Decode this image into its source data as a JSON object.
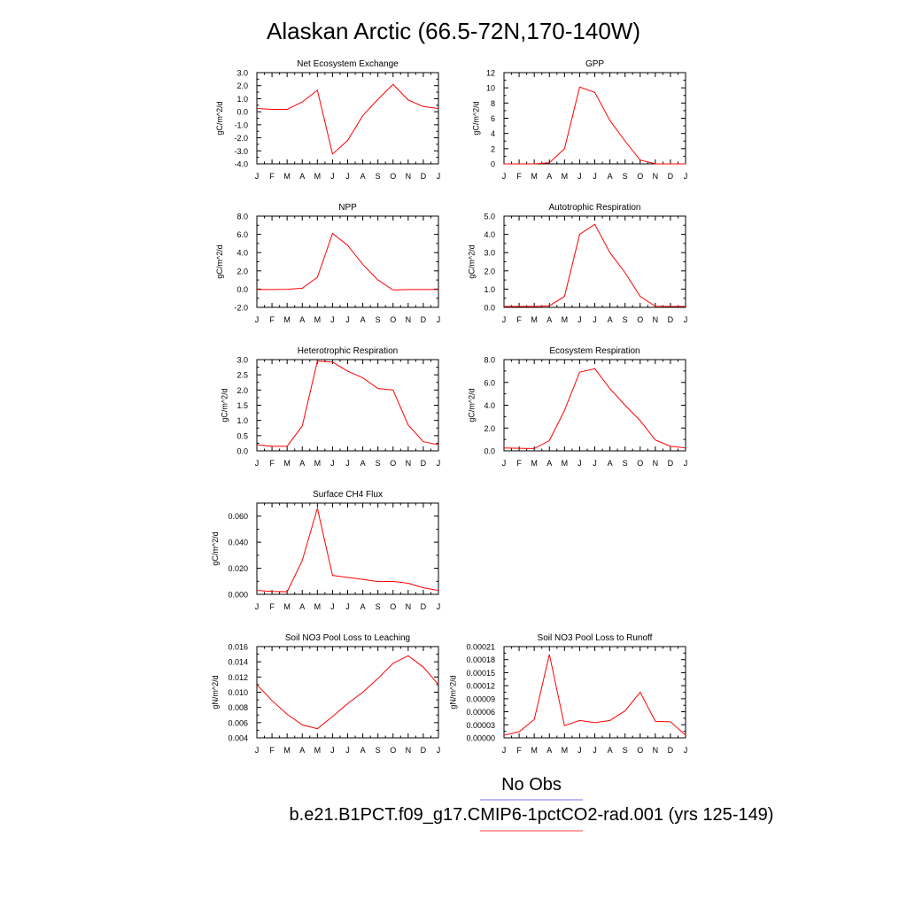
{
  "page_title": "Alaskan Arctic (66.5-72N,170-140W)",
  "legend": [
    {
      "label": "No Obs",
      "color": "#7777ff"
    },
    {
      "label": "b.e21.B1PCT.f09_g17.CMIP6-1pctCO2-rad.001 (yrs 125-149)",
      "color": "#ff4444"
    }
  ],
  "chart_data": [
    {
      "type": "line",
      "title": "Net Ecosystem Exchange",
      "ylabel": "gC/m^2/d",
      "categories": [
        "J",
        "F",
        "M",
        "A",
        "M",
        "J",
        "J",
        "A",
        "S",
        "O",
        "N",
        "D",
        "J"
      ],
      "ylim": [
        -4,
        3
      ],
      "yticks": [
        -4,
        -3,
        -2,
        -1,
        0,
        1,
        2,
        3
      ],
      "ytick_labels": [
        "-4.0",
        "-3.0",
        "-2.0",
        "-1.0",
        "0.0",
        "1.0",
        "2.0",
        "3.0"
      ],
      "series": [
        {
          "color": "#ff0000",
          "values": [
            0.25,
            0.18,
            0.18,
            0.75,
            1.65,
            -3.25,
            -2.2,
            -0.3,
            0.95,
            2.1,
            0.9,
            0.4,
            0.25
          ]
        }
      ]
    },
    {
      "type": "line",
      "title": "GPP",
      "ylabel": "gC/m^2/d",
      "categories": [
        "J",
        "F",
        "M",
        "A",
        "M",
        "J",
        "J",
        "A",
        "S",
        "O",
        "N",
        "D",
        "J"
      ],
      "ylim": [
        0,
        12
      ],
      "yticks": [
        0,
        2,
        4,
        6,
        8,
        10,
        12
      ],
      "ytick_labels": [
        "0",
        "2",
        "4",
        "6",
        "8",
        "10",
        "12"
      ],
      "series": [
        {
          "color": "#ff0000",
          "values": [
            0.0,
            0.0,
            0.0,
            0.15,
            2.0,
            10.1,
            9.4,
            5.7,
            3.0,
            0.5,
            0.02,
            0.0,
            0.0
          ]
        }
      ]
    },
    {
      "type": "line",
      "title": "NPP",
      "ylabel": "gC/m^2/d",
      "categories": [
        "J",
        "F",
        "M",
        "A",
        "M",
        "J",
        "J",
        "A",
        "S",
        "O",
        "N",
        "D",
        "J"
      ],
      "ylim": [
        -2,
        8
      ],
      "yticks": [
        -2,
        0,
        2,
        4,
        6,
        8
      ],
      "ytick_labels": [
        "-2.0",
        "0.0",
        "2.0",
        "4.0",
        "6.0",
        "8.0"
      ],
      "series": [
        {
          "color": "#ff0000",
          "values": [
            -0.05,
            -0.05,
            -0.02,
            0.1,
            1.3,
            6.1,
            4.8,
            2.7,
            1.0,
            -0.1,
            -0.05,
            -0.05,
            -0.05
          ]
        }
      ]
    },
    {
      "type": "line",
      "title": "Autotrophic Respiration",
      "ylabel": "gC/m^2/d",
      "categories": [
        "J",
        "F",
        "M",
        "A",
        "M",
        "J",
        "J",
        "A",
        "S",
        "O",
        "N",
        "D",
        "J"
      ],
      "ylim": [
        0,
        5
      ],
      "yticks": [
        0,
        1,
        2,
        3,
        4,
        5
      ],
      "ytick_labels": [
        "0.0",
        "1.0",
        "2.0",
        "3.0",
        "4.0",
        "5.0"
      ],
      "series": [
        {
          "color": "#ff0000",
          "values": [
            0.05,
            0.05,
            0.05,
            0.08,
            0.6,
            4.0,
            4.55,
            3.0,
            1.9,
            0.6,
            0.06,
            0.05,
            0.05
          ]
        }
      ]
    },
    {
      "type": "line",
      "title": "Heterotrophic Respiration",
      "ylabel": "gC/m^2/d",
      "categories": [
        "J",
        "F",
        "M",
        "A",
        "M",
        "J",
        "J",
        "A",
        "S",
        "O",
        "N",
        "D",
        "J"
      ],
      "ylim": [
        0,
        3
      ],
      "yticks": [
        0,
        0.5,
        1,
        1.5,
        2,
        2.5,
        3
      ],
      "ytick_labels": [
        "0.0",
        "0.5",
        "1.0",
        "1.5",
        "2.0",
        "2.5",
        "3.0"
      ],
      "series": [
        {
          "color": "#ff0000",
          "values": [
            0.2,
            0.15,
            0.15,
            0.82,
            2.95,
            2.92,
            2.62,
            2.4,
            2.05,
            2.0,
            0.85,
            0.3,
            0.2
          ]
        }
      ]
    },
    {
      "type": "line",
      "title": "Ecosystem Respiration",
      "ylabel": "gC/m^2/d",
      "categories": [
        "J",
        "F",
        "M",
        "A",
        "M",
        "J",
        "J",
        "A",
        "S",
        "O",
        "N",
        "D",
        "J"
      ],
      "ylim": [
        0,
        8
      ],
      "yticks": [
        0,
        2,
        4,
        6,
        8
      ],
      "ytick_labels": [
        "0.0",
        "2.0",
        "4.0",
        "6.0",
        "8.0"
      ],
      "series": [
        {
          "color": "#ff0000",
          "values": [
            0.25,
            0.22,
            0.2,
            0.9,
            3.55,
            6.9,
            7.2,
            5.45,
            4.0,
            2.65,
            0.95,
            0.4,
            0.25
          ]
        }
      ]
    },
    {
      "type": "line",
      "title": "Surface CH4 Flux",
      "ylabel": "gC/m^2/d",
      "categories": [
        "J",
        "F",
        "M",
        "A",
        "M",
        "J",
        "J",
        "A",
        "S",
        "O",
        "N",
        "D",
        "J"
      ],
      "ylim": [
        0,
        0.07
      ],
      "yticks": [
        0,
        0.02,
        0.04,
        0.06
      ],
      "ytick_labels": [
        "0.000",
        "0.020",
        "0.040",
        "0.060"
      ],
      "series": [
        {
          "color": "#ff0000",
          "values": [
            0.003,
            0.0022,
            0.002,
            0.026,
            0.066,
            0.0145,
            0.013,
            0.0115,
            0.0098,
            0.0099,
            0.0085,
            0.005,
            0.003
          ]
        }
      ]
    },
    {
      "type": "line",
      "title": "Soil NO3 Pool Loss to Leaching",
      "ylabel": "gN/m^2/d",
      "categories": [
        "J",
        "F",
        "M",
        "A",
        "M",
        "J",
        "J",
        "A",
        "S",
        "O",
        "N",
        "D",
        "J"
      ],
      "ylim": [
        0.004,
        0.016
      ],
      "yticks": [
        0.004,
        0.006,
        0.008,
        0.01,
        0.012,
        0.014,
        0.016
      ],
      "ytick_labels": [
        "0.004",
        "0.006",
        "0.008",
        "0.010",
        "0.012",
        "0.014",
        "0.016"
      ],
      "series": [
        {
          "color": "#ff0000",
          "values": [
            0.011,
            0.0089,
            0.0071,
            0.0057,
            0.0052,
            0.0068,
            0.0085,
            0.01,
            0.0118,
            0.0138,
            0.0148,
            0.0133,
            0.011
          ]
        }
      ]
    },
    {
      "type": "line",
      "title": "Soil NO3 Pool Loss to Runoff",
      "ylabel": "gN/m^2/d",
      "categories": [
        "J",
        "F",
        "M",
        "A",
        "M",
        "J",
        "J",
        "A",
        "S",
        "O",
        "N",
        "D",
        "J"
      ],
      "ylim": [
        0,
        0.00021
      ],
      "yticks": [
        0,
        3e-05,
        6e-05,
        9e-05,
        0.00012,
        0.00015,
        0.00018,
        0.00021
      ],
      "ytick_labels": [
        "0.00000",
        "0.00003",
        "0.00006",
        "0.00009",
        "0.00012",
        "0.00015",
        "0.00018",
        "0.00021"
      ],
      "series": [
        {
          "color": "#ff0000",
          "values": [
            6e-06,
            1.4e-05,
            4.2e-05,
            0.000192,
            2.8e-05,
            4e-05,
            3.5e-05,
            4e-05,
            6.2e-05,
            0.000105,
            3.8e-05,
            3.7e-05,
            6e-06
          ]
        }
      ]
    }
  ]
}
